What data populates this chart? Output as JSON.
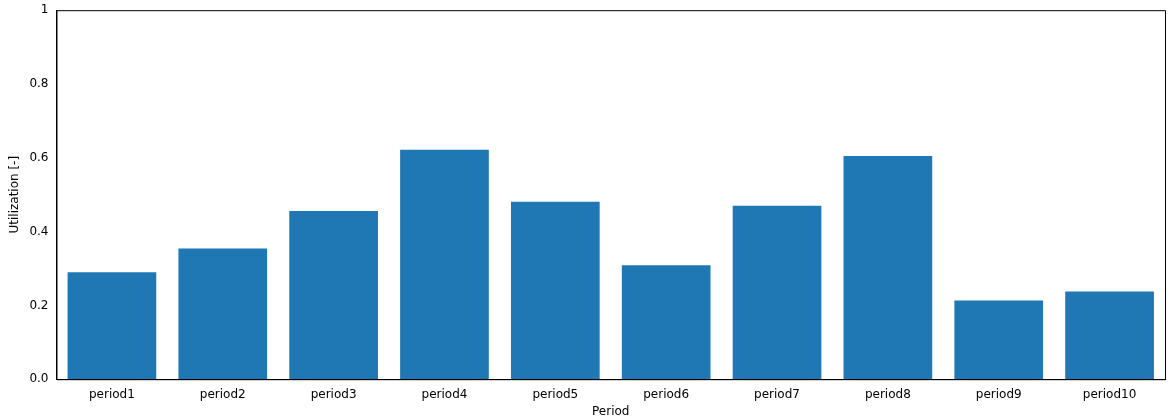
{
  "chart_data": {
    "type": "bar",
    "xlabel": "Period",
    "ylabel": "Utilization [-]",
    "categories": [
      "period1",
      "period2",
      "period3",
      "period4",
      "period5",
      "period6",
      "period7",
      "period8",
      "period9",
      "period10"
    ],
    "values": [
      0.29,
      0.354,
      0.456,
      0.622,
      0.481,
      0.309,
      0.47,
      0.605,
      0.213,
      0.238
    ],
    "color": "#1f77b4",
    "ylim": [
      0,
      1
    ],
    "yticks": [
      {
        "value": 0,
        "label": "0.0"
      },
      {
        "value": 0.2,
        "label": "0.2"
      },
      {
        "value": 0.4,
        "label": "0.4"
      },
      {
        "value": 0.6,
        "label": "0.6"
      },
      {
        "value": 0.8,
        "label": "0.8"
      },
      {
        "value": 1,
        "label": "1"
      }
    ],
    "grid": false,
    "legend": false
  }
}
